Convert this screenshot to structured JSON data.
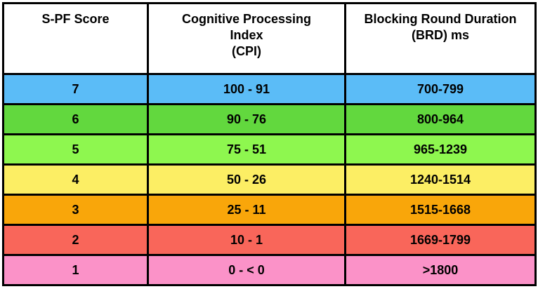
{
  "table": {
    "headers": [
      [
        "S-PF Score"
      ],
      [
        "Cognitive Processing",
        "Index",
        "(CPI)"
      ],
      [
        "Blocking Round Duration",
        "(BRD) ms"
      ]
    ],
    "rows": [
      {
        "score": "7",
        "cpi": "100 - 91",
        "brd": "700-799",
        "color": "#5bbcf7"
      },
      {
        "score": "6",
        "cpi": "90 - 76",
        "brd": "800-964",
        "color": "#62d83e"
      },
      {
        "score": "5",
        "cpi": "75 - 51",
        "brd": "965-1239",
        "color": "#8ef74f"
      },
      {
        "score": "4",
        "cpi": "50 - 26",
        "brd": "1240-1514",
        "color": "#fcee64"
      },
      {
        "score": "3",
        "cpi": "25 - 11",
        "brd": "1515-1668",
        "color": "#f9a60a"
      },
      {
        "score": "2",
        "cpi": "10 - 1",
        "brd": "1669-1799",
        "color": "#f9665a"
      },
      {
        "score": "1",
        "cpi": "0 - < 0",
        "brd": ">1800",
        "color": "#fb92c8"
      }
    ]
  }
}
